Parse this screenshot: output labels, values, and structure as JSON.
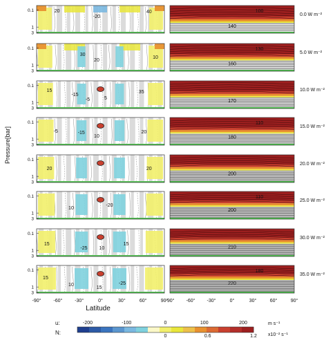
{
  "figure": {
    "y_axis_label": "Pressure[bar]",
    "x_axis_label": "Latitude",
    "y_tick_labels": [
      "0.1",
      "1",
      "3"
    ],
    "x_tick_labels": [
      "-90°",
      "-60°",
      "-30°",
      "0°",
      "30°",
      "60°",
      "90°"
    ],
    "colors": {
      "blue_dark": "#1f3f8f",
      "blue_mid": "#3a74bf",
      "blue_light": "#7ab8e0",
      "cyan": "#7fd1de",
      "yellow_light": "#f2ef6c",
      "yellow": "#e9e63a",
      "orange": "#e8912f",
      "red": "#c9402f",
      "red_dark": "#9d1f1f",
      "grey": "#bdbdbd",
      "green": "#2bb52b"
    }
  },
  "panels": [
    {
      "forcing": "0.0 W m⁻²",
      "u_labels": [
        "20",
        "-20",
        "40"
      ],
      "n_label": "140",
      "n_top": "100"
    },
    {
      "forcing": "5.0 W m⁻²",
      "u_labels": [
        "30",
        "20",
        "10"
      ],
      "n_label": "160",
      "n_top": "130"
    },
    {
      "forcing": "10.0 W m⁻²",
      "u_labels": [
        "15",
        "-15",
        "-5",
        "5",
        "35"
      ],
      "n_label": "170",
      "n_top": ""
    },
    {
      "forcing": "15.0 W m⁻²",
      "u_labels": [
        "-5",
        "-15",
        "10",
        "20"
      ],
      "n_label": "180",
      "n_top": "110"
    },
    {
      "forcing": "20.0 W m⁻²",
      "u_labels": [
        "20",
        "20"
      ],
      "n_label": "200",
      "n_top": ""
    },
    {
      "forcing": "25.0 W m⁻²",
      "u_labels": [
        "10",
        "-20"
      ],
      "n_label": "200",
      "n_top": "110"
    },
    {
      "forcing": "30.0 W m⁻²",
      "u_labels": [
        "15",
        "-25",
        "10",
        "15"
      ],
      "n_label": "210",
      "n_top": ""
    },
    {
      "forcing": "35.0 W m⁻²",
      "u_labels": [
        "15",
        "10",
        "15",
        "-25"
      ],
      "n_label": "220",
      "n_top": "180"
    }
  ],
  "colorbar": {
    "u_symbol": "u:",
    "n_symbol": "N:",
    "u_ticks": [
      "-200",
      "-100",
      "0",
      "100",
      "200"
    ],
    "n_ticks": [
      "0",
      "0.6",
      "1.2"
    ],
    "u_unit": "m s⁻¹",
    "n_unit": "x10⁻² s⁻¹"
  }
}
